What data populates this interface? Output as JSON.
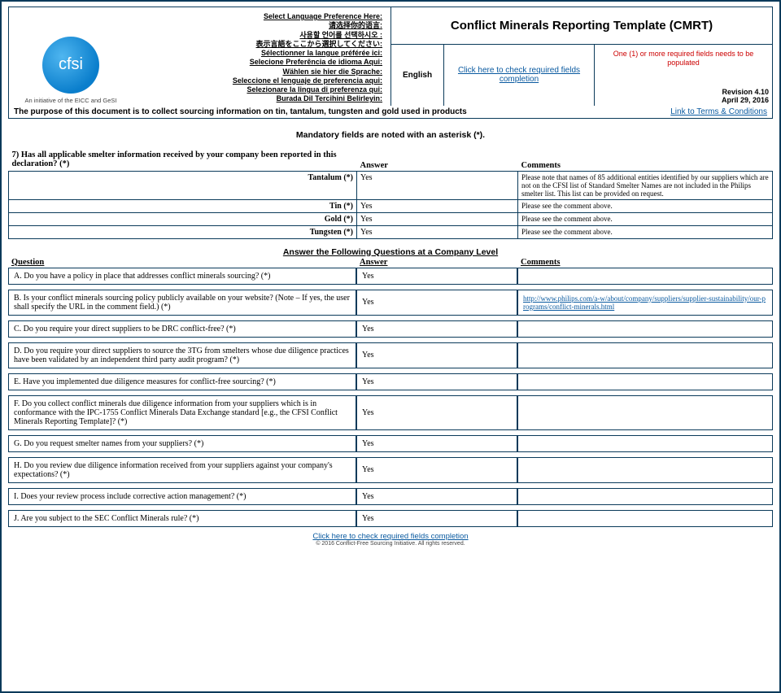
{
  "header": {
    "logo_text": "cfsi",
    "logo_sub": "An initiative of the EICC and GeSI",
    "title": "Conflict Minerals Reporting Template (CMRT)",
    "lang_lines": [
      "Select Language Preference Here:",
      "请选择你的语言:",
      "사용할 언어를 선택하시오 :",
      "表示言語をここから選択してください:",
      "Sélectionner la langue préférée ici:",
      "Selecione Preferência de idioma Aqui:",
      "Wählen sie hier die Sprache:",
      "Seleccione el lenguaje de preferencia aqui:",
      "Selezionare la lingua di preferenza qui:",
      "Burada Dil Tercihini Belirleyin:"
    ],
    "english": "English",
    "check_link": "Click here to check required fields completion",
    "status": "One (1) or more required fields needs to be populated",
    "revision": "Revision 4.10",
    "date": "April 29, 2016",
    "purpose": "The purpose of this document is to collect sourcing information on tin, tantalum, tungsten and gold used in products",
    "terms_link": "Link to Terms & Conditions"
  },
  "mandatory": "Mandatory fields are noted with an asterisk (*).",
  "q7": {
    "question": "7) Has all applicable smelter information received by your company been reported in this declaration?  (*)",
    "answer_hdr": "Answer",
    "comments_hdr": "Comments",
    "rows": [
      {
        "metal": "Tantalum  (*)",
        "answer": "Yes",
        "comment": "Please note that names of 85 additional entities identified by our suppliers which are not on the CFSI list of Standard Smelter Names are not included in the Philips smelter list.  This list can be provided on request."
      },
      {
        "metal": "Tin  (*)",
        "answer": "Yes",
        "comment": "Please see the comment above."
      },
      {
        "metal": "Gold  (*)",
        "answer": "Yes",
        "comment": "Please see the comment above."
      },
      {
        "metal": "Tungsten  (*)",
        "answer": "Yes",
        "comment": "Please see the comment above."
      }
    ]
  },
  "company_section_title": "Answer the Following Questions at a Company Level",
  "hdr": {
    "q": "Question",
    "a": "Answer",
    "c": "Comments"
  },
  "company_q": [
    {
      "q": "A. Do you have a policy in place that addresses conflict minerals sourcing? (*)",
      "a": "Yes",
      "c": ""
    },
    {
      "q": "B. Is your conflict minerals sourcing policy publicly available on your website? (Note – If yes, the user shall specify the URL in the comment field.) (*)",
      "a": "Yes",
      "c_link": "http://www.philips.com/a-w/about/company/suppliers/supplier-sustainability/our-programs/conflict-minerals.html"
    },
    {
      "q": "C. Do you require your direct suppliers to be DRC conflict-free? (*)",
      "a": "Yes",
      "c": ""
    },
    {
      "q": "D. Do you require your direct suppliers to source the 3TG from smelters whose due diligence practices have been validated by an independent third party audit program? (*)",
      "a": "Yes",
      "c": ""
    },
    {
      "q": "E. Have you implemented due diligence measures for conflict-free sourcing? (*)",
      "a": "Yes",
      "c": ""
    },
    {
      "q": "F. Do you collect conflict minerals due diligence information from your suppliers which is in conformance with the IPC-1755 Conflict Minerals Data Exchange standard [e.g., the CFSI Conflict Minerals Reporting Template]? (*)",
      "a": "Yes",
      "c": ""
    },
    {
      "q": "G. Do you request smelter names from your suppliers? (*)",
      "a": "Yes",
      "c": ""
    },
    {
      "q": "H. Do you review due diligence information received from your suppliers against your company's expectations? (*)",
      "a": "Yes",
      "c": ""
    },
    {
      "q": "I. Does your review process include corrective action management? (*)",
      "a": "Yes",
      "c": ""
    },
    {
      "q": "J. Are you subject to the SEC Conflict Minerals rule? (*)",
      "a": "Yes",
      "c": ""
    }
  ],
  "footer_link": "Click here to check required fields completion",
  "copyright": "© 2016 Conflict-Free Sourcing Initiative. All rights reserved."
}
